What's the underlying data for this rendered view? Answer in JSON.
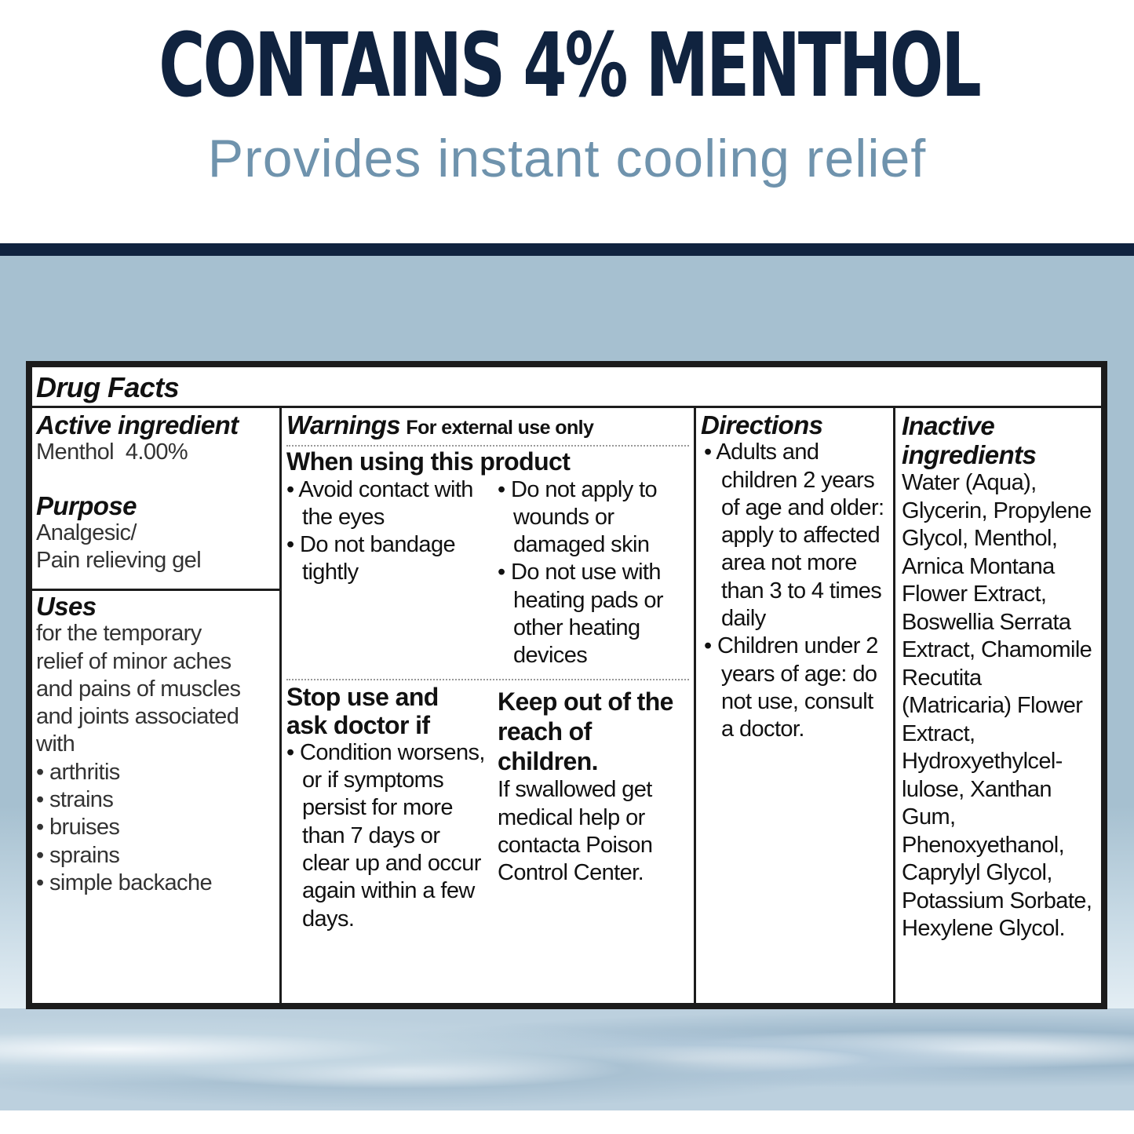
{
  "header": {
    "headline": "CONTAINS 4% MENTHOL",
    "subheadline": "Provides instant cooling relief"
  },
  "drug_facts": {
    "title": "Drug Facts",
    "active_ingredient": {
      "heading": "Active ingredient",
      "value": "Menthol  4.00%"
    },
    "purpose": {
      "heading": "Purpose",
      "lines": [
        "Analgesic/",
        "Pain relieving gel"
      ]
    },
    "uses": {
      "heading": "Uses",
      "text": "for the temporary relief of minor aches and pains of muscles and joints associated with",
      "items": [
        "arthritis",
        "strains",
        "bruises",
        "sprains",
        "simple backache"
      ]
    },
    "warnings": {
      "heading": "Warnings",
      "subheading": "For external use only",
      "when_using": {
        "heading": "When using this product",
        "left": [
          "Avoid contact with the eyes",
          "Do not bandage tightly"
        ],
        "right": [
          "Do not apply to wounds or damaged skin",
          "Do not use with heating pads or other heating devices"
        ]
      },
      "stop_use": {
        "heading": "Stop use and ask doctor if",
        "items": [
          "Condition worsens, or if symptoms persist for more than 7 days or clear up and occur again within a few days."
        ]
      },
      "keep_out": {
        "heading": "Keep out of the reach of children.",
        "text": "If swallowed get medical help or contacta Poison Control Center."
      }
    },
    "directions": {
      "heading": "Directions",
      "items": [
        "Adults and children 2 years of age and older: apply to affected area not more than 3 to 4 times daily",
        "Children under 2 years of age: do not use, consult a doctor."
      ]
    },
    "inactive": {
      "heading": "Inactive ingredients",
      "text": "Water (Aqua), Glycerin, Propylene Glycol, Menthol, Arnica Montana Flower Extract, Boswellia Serrata Extract, Chamomile Recutita (Matricaria) Flower Extract, Hydroxyethylcel-lulose, Xanthan Gum, Phenoxyethanol, Caprylyl Glycol, Potassium Sorbate, Hexylene Glycol."
    }
  },
  "colors": {
    "navy": "#10233f",
    "subtitle": "#6f93ad",
    "panel": "#a6c0d0"
  }
}
